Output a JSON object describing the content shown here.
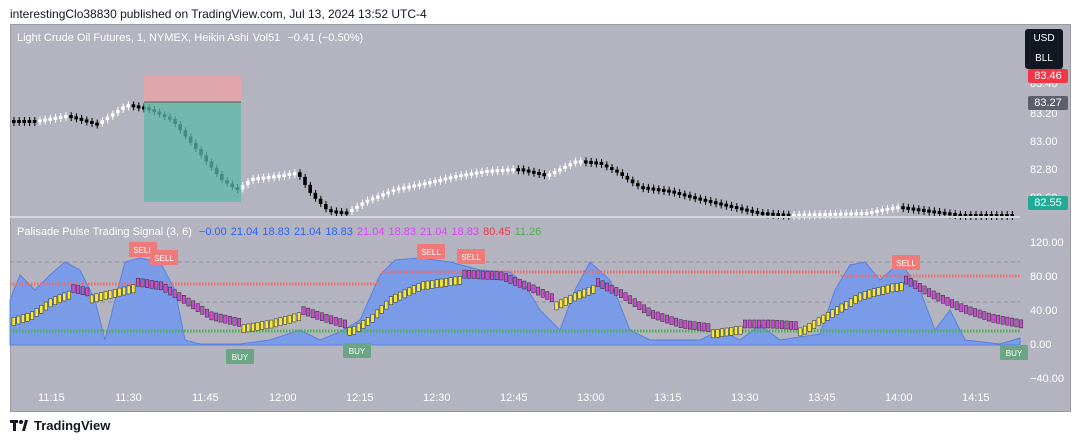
{
  "publish_line": "interestingClo38830 published on TradingView.com, Jul 13, 2024 13:52 UTC-4",
  "price_pane": {
    "symbol_line": "Light Crude Oil Futures, 1, NYMEX, Heikin Ashi",
    "vol_label": "Vol",
    "vol_value": "51",
    "change": "−0.41 (−0.50%)"
  },
  "price_axis": {
    "ticks": [
      "83.40",
      "83.20",
      "83.00",
      "82.80",
      "82.60"
    ],
    "tag_top": "83.46",
    "tag_current": "83.27",
    "tag_last": "82.55"
  },
  "currency": {
    "primary": "USD",
    "secondary": "BLL"
  },
  "indicator_pane": {
    "name": "Palisade Pulse Trading Signal (3, 6)",
    "values": [
      "−0.00",
      "21.04",
      "18.83",
      "21.04",
      "18.83",
      "21.04",
      "18.83",
      "21.04",
      "18.83",
      "80.45",
      "11.26"
    ],
    "value_colors": [
      "#2962ff",
      "#2962ff",
      "#2962ff",
      "#2962ff",
      "#2962ff",
      "#e040fb",
      "#e040fb",
      "#e040fb",
      "#e040fb",
      "#f23645",
      "#4caf50"
    ],
    "ticks": [
      "120.00",
      "80.00",
      "40.00",
      "0.00",
      "−40.00"
    ],
    "signals": [
      {
        "label": "SELL",
        "type": "sell"
      },
      {
        "label": "SELL",
        "type": "sell"
      },
      {
        "label": "SELL",
        "type": "sell"
      },
      {
        "label": "SELL",
        "type": "sell"
      },
      {
        "label": "SELL",
        "type": "sell"
      },
      {
        "label": "BUY",
        "type": "buy"
      },
      {
        "label": "BUY",
        "type": "buy"
      },
      {
        "label": "BUY",
        "type": "buy"
      }
    ]
  },
  "time_axis": [
    "11:15",
    "11:30",
    "11:45",
    "12:00",
    "12:15",
    "12:30",
    "12:45",
    "13:00",
    "13:15",
    "13:30",
    "13:45",
    "14:00",
    "14:15"
  ],
  "footer": {
    "brand": "TradingView"
  },
  "colors": {
    "background": "#b3b4bf",
    "sell": "#f07a7a",
    "buy": "#6aa584",
    "area": "#7a9be8",
    "bull": "#f5e642",
    "bear": "#c24fc9"
  }
}
